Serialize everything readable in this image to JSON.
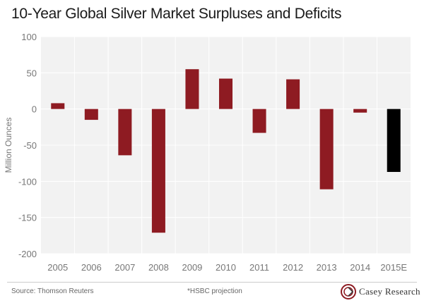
{
  "chart_data": {
    "type": "bar",
    "title": "10-Year Global Silver Market Surpluses and Deficits",
    "xlabel": "",
    "ylabel": "Million Ounces",
    "categories": [
      "2005",
      "2006",
      "2007",
      "2008",
      "2009",
      "2010",
      "2011",
      "2012",
      "2013",
      "2014",
      "2015E"
    ],
    "values": [
      8,
      -15,
      -64,
      -171,
      55,
      42,
      -33,
      41,
      -111,
      -5,
      -87
    ],
    "projected": [
      false,
      false,
      false,
      false,
      false,
      false,
      false,
      false,
      false,
      false,
      true
    ],
    "colors": {
      "actual": "#8e1b22",
      "projected": "#000000",
      "plot_bg": "#f2f2f2"
    },
    "ylim": [
      -200,
      100
    ],
    "yticks": [
      100,
      50,
      0,
      -50,
      -100,
      -150,
      -200
    ],
    "grid": true,
    "legend": "none"
  },
  "footer": {
    "source": "Source: Thomson Reuters",
    "note": "*HSBC projection",
    "brand": "Casey Research"
  }
}
